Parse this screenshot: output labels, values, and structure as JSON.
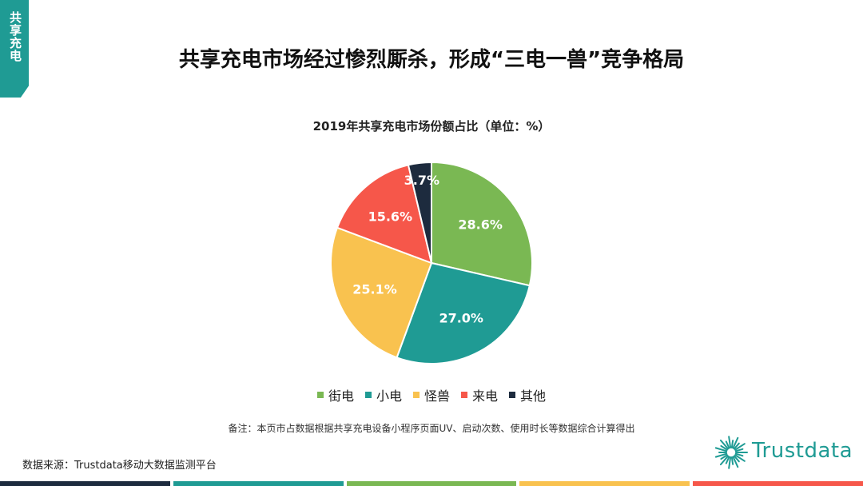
{
  "side_tab": {
    "text": "共享充电"
  },
  "page_title": "共享充电市场经过惨烈厮杀，形成“三电一兽”竞争格局",
  "chart_data": {
    "type": "pie",
    "title": "2019年共享充电市场份额占比（单位：%）",
    "categories": [
      "街电",
      "小电",
      "怪兽",
      "来电",
      "其他"
    ],
    "values": [
      28.6,
      27.0,
      25.1,
      15.6,
      3.7
    ],
    "labels": [
      "28.6%",
      "27.0%",
      "25.1%",
      "15.6%",
      "3.7%"
    ],
    "colors": [
      "#7ab853",
      "#1f9b94",
      "#f9c24f",
      "#f6574a",
      "#1d2b3e"
    ],
    "legend_position": "bottom"
  },
  "note": "备注：本页市占数据根据共享充电设备小程序页面UV、启动次数、使用时长等数据综合计算得出",
  "source": "数据来源：Trustdata移动大数据监测平台",
  "logo": {
    "text": "Trustdata",
    "color": "#1f9b94"
  },
  "bottom_bar_colors": [
    "#1d2b3e",
    "#1f9b94",
    "#7ab853",
    "#f9c24f",
    "#f6574a"
  ]
}
